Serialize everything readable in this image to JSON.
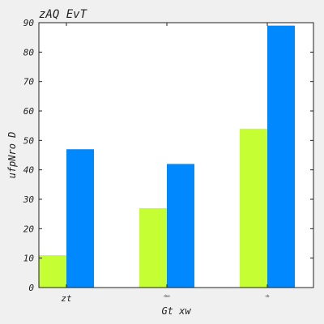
{
  "chart_data": {
    "type": "bar",
    "title": "zAQ EvT",
    "xlabel": "Gt xw",
    "ylabel": "ufpNro  D",
    "categories": [
      "zt",
      "dne",
      "cb"
    ],
    "series": [
      {
        "values": [
          11,
          27,
          54
        ],
        "color": "#c5ff33"
      },
      {
        "values": [
          47,
          42,
          89
        ],
        "color": "#0088ff"
      }
    ],
    "ylim": [
      0,
      90
    ],
    "yticks": [
      0,
      10,
      20,
      30,
      40,
      50,
      60,
      70,
      80,
      90
    ],
    "grid": false,
    "background": "#ffffff",
    "page_background": "#f0f0f0"
  }
}
